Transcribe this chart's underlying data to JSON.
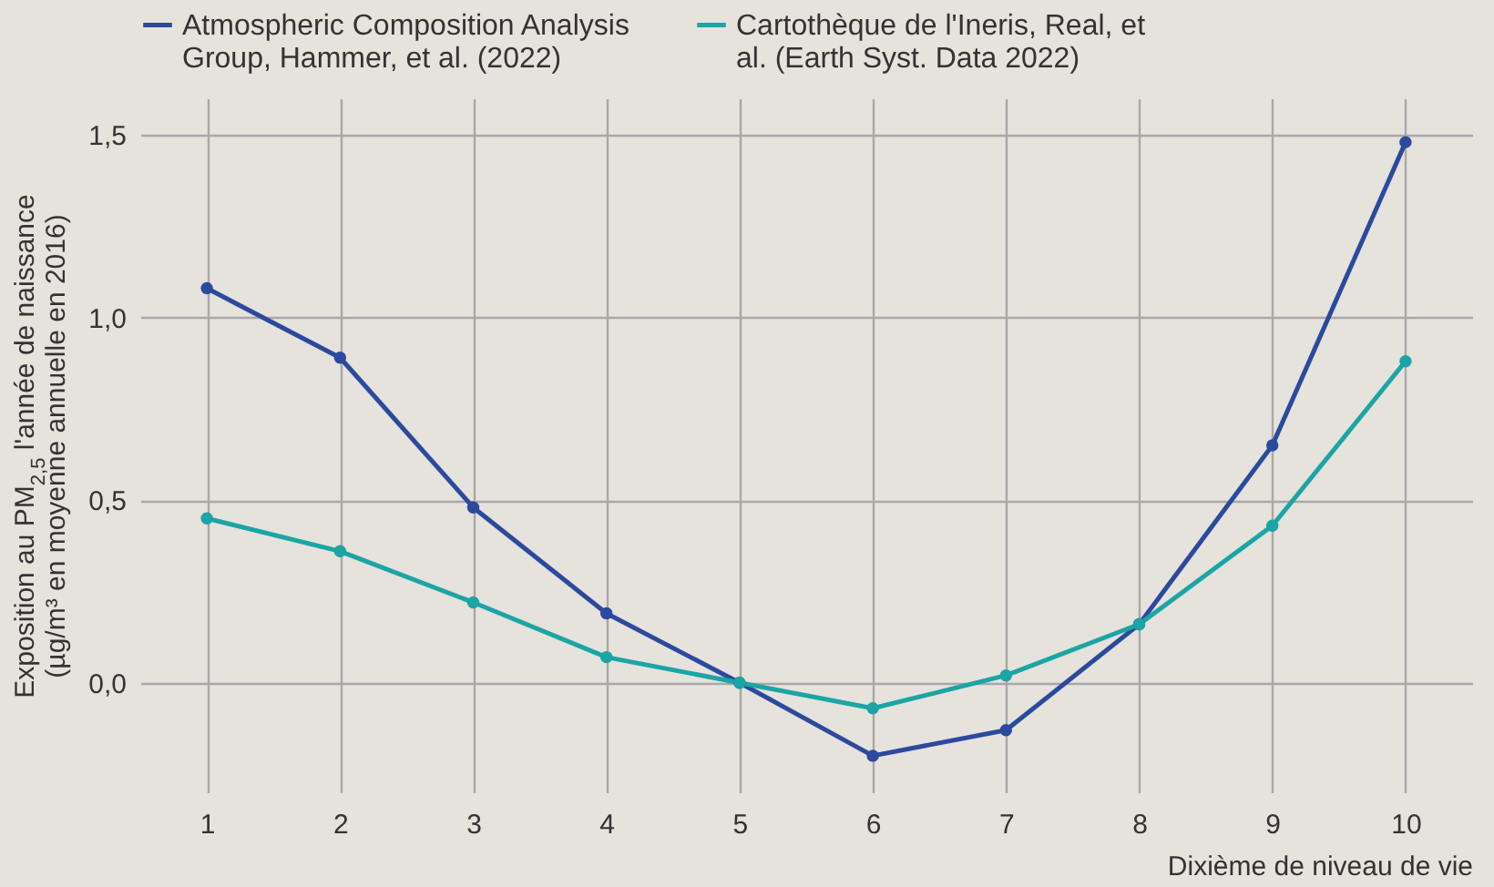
{
  "chart_data": {
    "type": "line",
    "xlabel": "Dixième de niveau de vie",
    "ylabel": "Exposition au PM$_{2,5}$ l'année de naissance (µg/m³ en moyenne annuelle en 2016)",
    "categories": [
      "1",
      "2",
      "3",
      "4",
      "5",
      "6",
      "7",
      "8",
      "9",
      "10"
    ],
    "series": [
      {
        "name": "Atmospheric Composition Analysis Group, Hammer, et al. (2022)",
        "color": "#2b4a9e",
        "values": [
          1.08,
          0.89,
          0.48,
          0.19,
          0,
          -0.2,
          -0.13,
          0.16,
          0.65,
          1.48
        ]
      },
      {
        "name": "Cartothèque de l'Ineris, Real, et al. (Earth Syst. Data 2022)",
        "color": "#1ba5a5",
        "values": [
          0.45,
          0.36,
          0.22,
          0.07,
          0,
          -0.07,
          0.02,
          0.16,
          0.43,
          0.88
        ]
      }
    ],
    "ylim": [
      -0.3,
      1.6
    ],
    "yticks": [
      {
        "value": 0,
        "label": "0,0"
      },
      {
        "value": 0.5,
        "label": "0,5"
      },
      {
        "value": 1,
        "label": "1,0"
      },
      {
        "value": 1.5,
        "label": "1,5"
      }
    ],
    "grid": true,
    "legend": "top",
    "marker": "circle",
    "line_style": "solid"
  }
}
